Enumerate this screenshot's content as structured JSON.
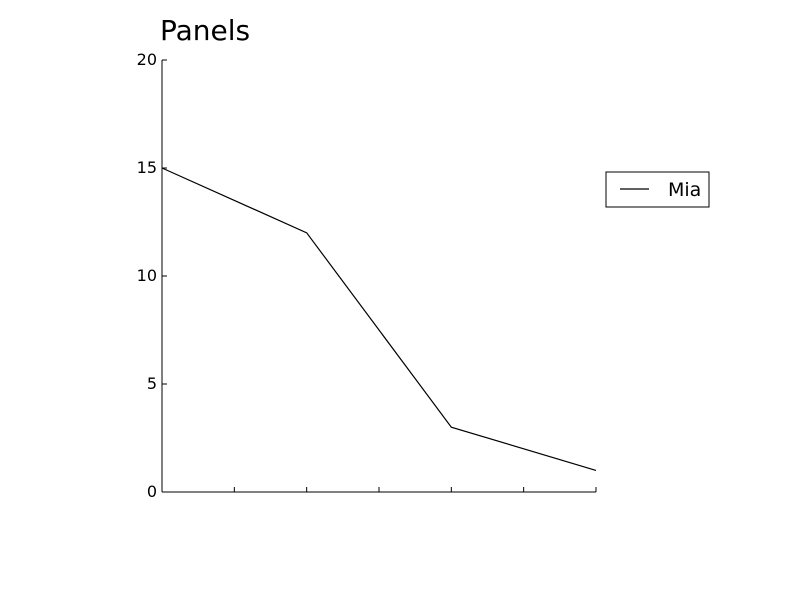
{
  "chart_data": {
    "type": "line",
    "title": "Panels",
    "xlabel": "",
    "ylabel": "",
    "x": [
      0,
      1,
      2,
      3
    ],
    "xlim": [
      0,
      3
    ],
    "ylim": [
      0,
      20
    ],
    "yticks": [
      0,
      5,
      10,
      15,
      20
    ],
    "xticks_minor_count": 7,
    "grid": false,
    "legend_position": "right",
    "series": [
      {
        "name": "Mia",
        "values": [
          15,
          12,
          3,
          1
        ],
        "color": "#000000"
      }
    ]
  }
}
